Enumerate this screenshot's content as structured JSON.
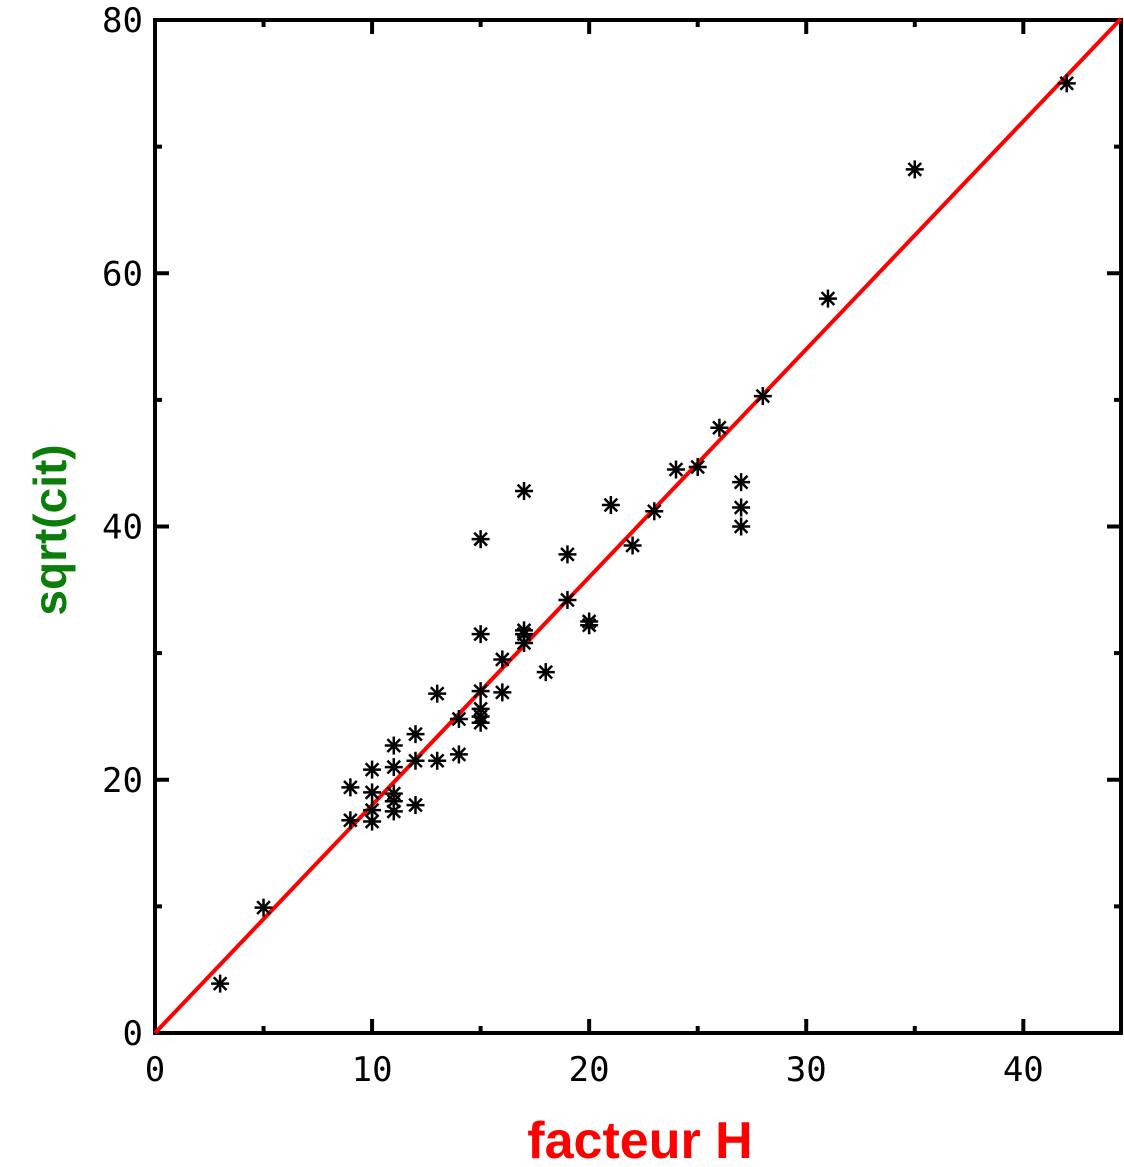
{
  "chart_data": {
    "type": "scatter",
    "xlabel": "facteur H",
    "ylabel": "sqrt(cit)",
    "xlim": [
      0,
      44.5
    ],
    "ylim": [
      0,
      80
    ],
    "x_ticks": [
      0,
      10,
      20,
      30,
      40
    ],
    "x_minor": [
      5,
      15,
      25,
      35
    ],
    "y_ticks": [
      0,
      20,
      40,
      60,
      80
    ],
    "y_minor": [
      10,
      30,
      50,
      70
    ],
    "grid": false,
    "marker": "asterisk",
    "colors": {
      "points": "#000000",
      "fit_line": "#ff0000",
      "xlabel": "#ff0000",
      "ylabel": "#0a7d0a",
      "axes": "#000000"
    },
    "fit_line": {
      "slope": 1.8,
      "intercept": 0,
      "x_range": [
        0,
        44.5
      ]
    },
    "series": [
      {
        "points": [
          [
            3,
            3.9
          ],
          [
            5,
            9.9
          ],
          [
            9,
            16.8
          ],
          [
            9,
            19.4
          ],
          [
            10,
            16.7
          ],
          [
            10,
            17.6
          ],
          [
            10,
            19
          ],
          [
            10,
            20.8
          ],
          [
            11,
            17.5
          ],
          [
            11,
            18.3
          ],
          [
            11,
            18.9
          ],
          [
            11,
            21
          ],
          [
            11,
            22.7
          ],
          [
            12,
            18
          ],
          [
            12,
            21.5
          ],
          [
            12,
            23.6
          ],
          [
            13,
            21.5
          ],
          [
            13,
            26.8
          ],
          [
            14,
            22
          ],
          [
            14,
            24.8
          ],
          [
            15,
            24.5
          ],
          [
            15,
            25
          ],
          [
            15,
            25.6
          ],
          [
            15,
            27
          ],
          [
            15,
            31.5
          ],
          [
            15,
            39
          ],
          [
            16,
            26.9
          ],
          [
            16,
            29.5
          ],
          [
            17,
            30.8
          ],
          [
            17,
            31.5
          ],
          [
            17,
            31.8
          ],
          [
            17,
            42.8
          ],
          [
            18,
            28.5
          ],
          [
            19,
            34.2
          ],
          [
            19,
            37.8
          ],
          [
            20,
            32.2
          ],
          [
            20,
            32.5
          ],
          [
            21,
            41.7
          ],
          [
            22,
            38.5
          ],
          [
            23,
            41.2
          ],
          [
            24,
            44.5
          ],
          [
            25,
            44.7
          ],
          [
            26,
            47.8
          ],
          [
            27,
            40
          ],
          [
            27,
            41.5
          ],
          [
            27,
            43.5
          ],
          [
            28,
            50.3
          ],
          [
            31,
            58
          ],
          [
            35,
            68.2
          ],
          [
            42,
            75
          ]
        ]
      }
    ]
  }
}
